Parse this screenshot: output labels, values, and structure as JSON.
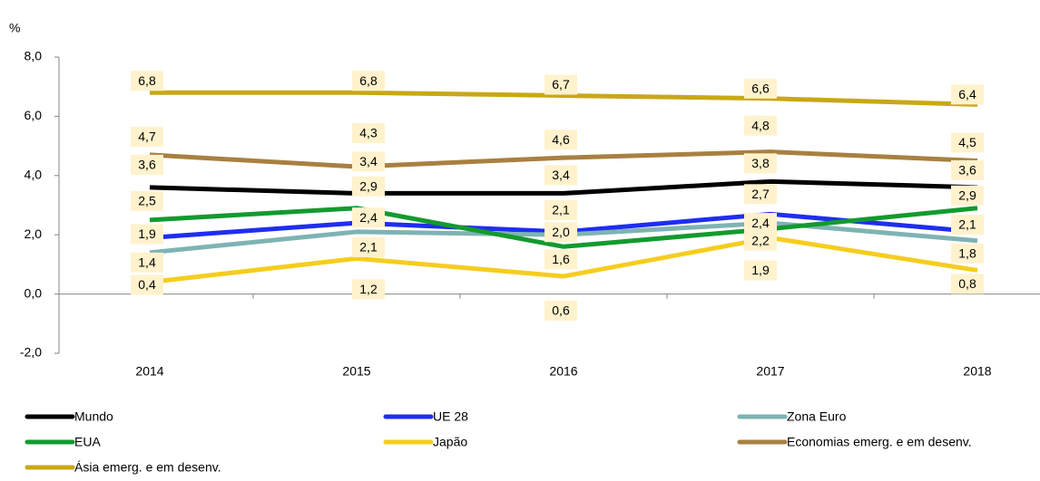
{
  "chart_data": {
    "type": "line",
    "y_unit_label": "%",
    "categories": [
      "2014",
      "2015",
      "2016",
      "2017",
      "2018"
    ],
    "ylim": [
      -2,
      8
    ],
    "yticks": [
      {
        "value": -2,
        "label": "-2,0"
      },
      {
        "value": 0,
        "label": "0,0"
      },
      {
        "value": 2,
        "label": "2,0"
      },
      {
        "value": 4,
        "label": "4,0"
      },
      {
        "value": 6,
        "label": "6,0"
      },
      {
        "value": 8,
        "label": "8,0"
      }
    ],
    "grid": false,
    "legend": "bottom",
    "series": [
      {
        "name": "Mundo",
        "color": "#000000",
        "values": [
          3.6,
          3.4,
          3.4,
          3.8,
          3.6
        ],
        "value_labels": [
          "3,6",
          "3,4",
          "3,4",
          "3,8",
          "3,6"
        ]
      },
      {
        "name": "UE 28",
        "color": "#1f2df0",
        "values": [
          1.9,
          2.4,
          2.1,
          2.7,
          2.1
        ],
        "value_labels": [
          "1,9",
          "2,4",
          "2,1",
          "2,7",
          "2,1"
        ]
      },
      {
        "name": "Zona Euro",
        "color": "#7fb3b3",
        "values": [
          1.4,
          2.1,
          2.0,
          2.4,
          1.8
        ],
        "value_labels": [
          "1,4",
          "2,1",
          "2,0",
          "2,4",
          "1,8"
        ]
      },
      {
        "name": "EUA",
        "color": "#139a2e",
        "values": [
          2.5,
          2.9,
          1.6,
          2.2,
          2.9
        ],
        "value_labels": [
          "2,5",
          "2,9",
          "1,6",
          "2,2",
          "2,9"
        ]
      },
      {
        "name": "Japão",
        "color": "#f5cd1f",
        "values": [
          0.4,
          1.2,
          0.6,
          1.9,
          0.8
        ],
        "value_labels": [
          "0,4",
          "1,2",
          "0,6",
          "1,9",
          "0,8"
        ]
      },
      {
        "name": "Economias emerg. e em desenv.",
        "color": "#a88040",
        "values": [
          4.7,
          4.3,
          4.6,
          4.8,
          4.5
        ],
        "value_labels": [
          "4,7",
          "4,3",
          "4,6",
          "4,8",
          "4,5"
        ]
      },
      {
        "name": "Ásia emerg. e em desenv.",
        "color": "#c8a816",
        "values": [
          6.8,
          6.8,
          6.7,
          6.6,
          6.4
        ],
        "value_labels": [
          "6,8",
          "6,8",
          "6,7",
          "6,6",
          "6,4"
        ]
      }
    ]
  }
}
